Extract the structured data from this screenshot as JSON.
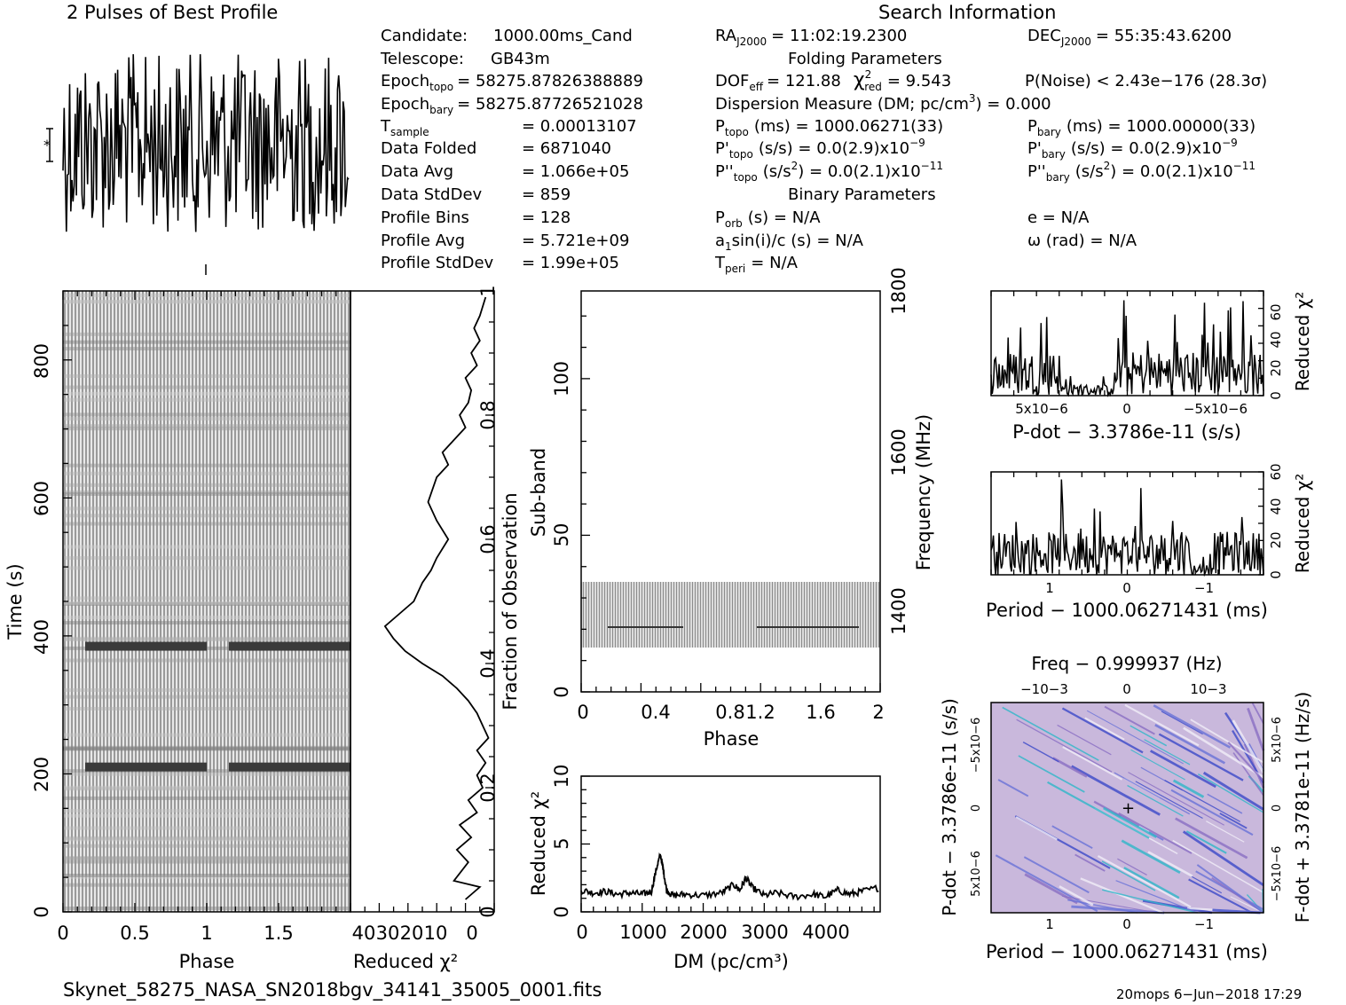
{
  "title_profile": "2 Pulses of Best Profile",
  "title_search": "Search Information",
  "info": {
    "candidate_label": "Candidate:",
    "candidate_value": "1000.00ms_Cand",
    "telescope_label": "Telescope:",
    "telescope_value": "GB43m",
    "epoch_topo": "Epoch",
    "epoch_topo_sub": "topo",
    "epoch_topo_value": "= 58275.87826388889",
    "epoch_bary": "Epoch",
    "epoch_bary_sub": "bary",
    "epoch_bary_value": "= 58275.87726521028",
    "tsample": "T",
    "tsample_sub": "sample",
    "tsample_value": "=   0.00013107",
    "data_folded": "Data Folded",
    "data_folded_value": "=   6871040",
    "data_avg": "Data Avg",
    "data_avg_value": "=   1.066e+05",
    "data_std": "Data StdDev",
    "data_std_value": "=   859",
    "prof_bins": "Profile Bins",
    "prof_bins_value": "=   128",
    "prof_avg": "Profile Avg",
    "prof_avg_value": "=   5.721e+09",
    "prof_std": "Profile StdDev",
    "prof_std_value": "=   1.99e+05"
  },
  "search": {
    "ra": "RA",
    "ra_sub": "J2000",
    "ra_value": "= 11:02:19.2300",
    "dec": "DEC",
    "dec_sub": "J2000",
    "dec_value": "= 55:35:43.6200",
    "folding_title": "Folding Parameters",
    "dof": "DOF",
    "dof_sub": "eff",
    "dof_value": "= 121.88",
    "chi": "χ",
    "chi_sup": "2",
    "chi_sub": "red",
    "chi_value": "= 9.543",
    "pnoise": "P(Noise) < 2.43e−176   (28.3σ)",
    "dm_line": "Dispersion Measure (DM; pc/cm",
    "dm_sup": "3",
    "dm_value": ") = 0.000",
    "ptopo": "P",
    "ptopo_sub": "topo",
    "ptopo_value": "(ms) =   1000.06271(33)",
    "pbary": "P",
    "pbary_sub": "bary",
    "pbary_value": "(ms) =   1000.00000(33)",
    "pdtopo": "P'",
    "pdtopo_sub": "topo",
    "pdtopo_value": "(s/s) = 0.0(2.9)x10",
    "pdtopo_exp": "−9",
    "pdbary": "P'",
    "pdbary_sub": "bary",
    "pdbary_value": "(s/s) = 0.0(2.9)x10",
    "pdbary_exp": "−9",
    "pddtopo": "P''",
    "pddtopo_sub": "topo",
    "pddtopo_value": "(s/s",
    "pddtopo_sup": "2",
    "pddtopo_value2": ") = 0.0(2.1)x10",
    "pddtopo_exp": "−11",
    "pddbary": "P''",
    "pddbary_sub": "bary",
    "pddbary_value": "(s/s",
    "pddbary_sup": "2",
    "pddbary_value2": ") = 0.0(2.1)x10",
    "pddbary_exp": "−11",
    "binary_title": "Binary Parameters",
    "porb": "P",
    "porb_sub": "orb",
    "porb_value": "(s) = N/A",
    "ecc": "e = N/A",
    "a1": "a",
    "a1_sub": "1",
    "a1_value": "sin(i)/c (s) = N/A",
    "omega": "ω (rad) = N/A",
    "tperi": "T",
    "tperi_sub": "peri",
    "tperi_value": "= N/A"
  },
  "footer": {
    "filename": "Skynet_58275_NASA_SN2018bgv_34141_35005_0001.fits",
    "stamp": "20mops   6−Jun−2018 17:29"
  },
  "chart_data": [
    {
      "type": "line",
      "title": "2 Pulses of Best Profile",
      "xlabel": "",
      "ylabel": "",
      "x": [
        0,
        2
      ],
      "description_of_series": ""
    },
    {
      "type": "heatmap",
      "xlabel": "Phase",
      "ylabel": "Time (s)",
      "xlim": [
        0,
        2
      ],
      "ylim": [
        0,
        900
      ],
      "x_ticks": [
        "0",
        "0.5",
        "1",
        "1.5"
      ],
      "y_ticks": [
        "0",
        "200",
        "400",
        "600",
        "800"
      ],
      "bright_rows_time_s": [
        210,
        385
      ]
    },
    {
      "type": "line",
      "xlabel": "Reduced χ²",
      "ylabel": "Fraction of Observation",
      "xlim": [
        50,
        0
      ],
      "ylim": [
        0,
        1
      ],
      "x_ticks": [
        "40",
        "30",
        "20",
        "10",
        "0"
      ],
      "y_ticks": [
        "0",
        "0.2",
        "0.4",
        "0.6",
        "0.8",
        "1"
      ],
      "series": [
        {
          "x": [
            10,
            5,
            14,
            9,
            13,
            8,
            12,
            6,
            9,
            4,
            6,
            3,
            6,
            2,
            4,
            6,
            9,
            13,
            18,
            25,
            31,
            35,
            38,
            33,
            28,
            25,
            22,
            20,
            16,
            20,
            23,
            20,
            16,
            18,
            14,
            10,
            12,
            9,
            8,
            10,
            6,
            8,
            5,
            7,
            5,
            3
          ],
          "y": [
            0.02,
            0.04,
            0.05,
            0.08,
            0.1,
            0.12,
            0.14,
            0.16,
            0.18,
            0.2,
            0.22,
            0.24,
            0.26,
            0.28,
            0.3,
            0.32,
            0.34,
            0.36,
            0.38,
            0.4,
            0.42,
            0.44,
            0.46,
            0.48,
            0.5,
            0.53,
            0.55,
            0.57,
            0.6,
            0.63,
            0.66,
            0.7,
            0.72,
            0.74,
            0.76,
            0.78,
            0.8,
            0.82,
            0.84,
            0.86,
            0.88,
            0.9,
            0.92,
            0.94,
            0.96,
            0.99
          ]
        }
      ]
    },
    {
      "type": "heatmap",
      "xlabel": "Phase",
      "ylabel": "Sub-band",
      "y2label": "Frequency (MHz)",
      "xlim": [
        0,
        2
      ],
      "ylim": [
        0,
        128
      ],
      "x_ticks": [
        "0",
        "0.4",
        "0.8",
        "1.2",
        "1.6",
        "2"
      ],
      "y_ticks": [
        "0",
        "50",
        "100"
      ],
      "y2_ticks": [
        "1400",
        "1600",
        "1800"
      ],
      "data_subbands": [
        14,
        35
      ]
    },
    {
      "type": "line",
      "xlabel": "DM (pc/cm³)",
      "ylabel": "Reduced χ²",
      "xlim": [
        0,
        4900
      ],
      "ylim": [
        0,
        10
      ],
      "x_ticks": [
        "0",
        "1000",
        "2000",
        "3000",
        "4000"
      ],
      "y_ticks": [
        "0",
        "5",
        "10"
      ],
      "series": [
        {
          "x": [
            0,
            200,
            400,
            600,
            800,
            1000,
            1150,
            1250,
            1300,
            1350,
            1400,
            1500,
            1700,
            2000,
            2300,
            2500,
            2600,
            2700,
            2800,
            3000,
            3200,
            3500,
            3800,
            4000,
            4200,
            4400,
            4600,
            4900
          ],
          "y": [
            1.6,
            1.4,
            1.5,
            1.3,
            1.4,
            1.3,
            1.5,
            3.5,
            4.2,
            3.0,
            1.6,
            1.2,
            1.3,
            1.2,
            1.4,
            2.0,
            1.6,
            2.5,
            1.8,
            1.2,
            1.4,
            1.1,
            1.3,
            1.1,
            1.6,
            1.3,
            1.5,
            1.8
          ]
        }
      ]
    },
    {
      "type": "line",
      "xlabel": "P-dot − 3.3786e-11 (s/s)",
      "ylabel": "Reduced χ²",
      "ylim": [
        0,
        75
      ],
      "x_ticks": [
        "5x10−6",
        "0",
        "−5x10−6"
      ],
      "y_ticks": [
        "0",
        "20",
        "40",
        "60"
      ]
    },
    {
      "type": "line",
      "xlabel": "Period − 1000.06271431 (ms)",
      "ylabel": "Reduced χ²",
      "ylim": [
        0,
        60
      ],
      "x_ticks": [
        "1",
        "0",
        "−1"
      ],
      "y_ticks": [
        "0",
        "20",
        "40",
        "60"
      ]
    },
    {
      "type": "heatmap",
      "title": "Freq − 0.999937 (Hz)",
      "xlabel": "Period − 1000.06271431 (ms)",
      "ylabel": "P-dot − 3.3786e-11 (s/s)",
      "y2label": "F-dot + 3.3781e-11 (Hz/s)",
      "x_ticks": [
        "1",
        "0",
        "−1"
      ],
      "top_ticks": [
        "−10−3",
        "0",
        "10−3"
      ],
      "y_ticks": [
        "−5x10−6",
        "0",
        "5x10−6"
      ],
      "y2_ticks": [
        "5x10−6",
        "0",
        "−5x10−6"
      ]
    }
  ]
}
